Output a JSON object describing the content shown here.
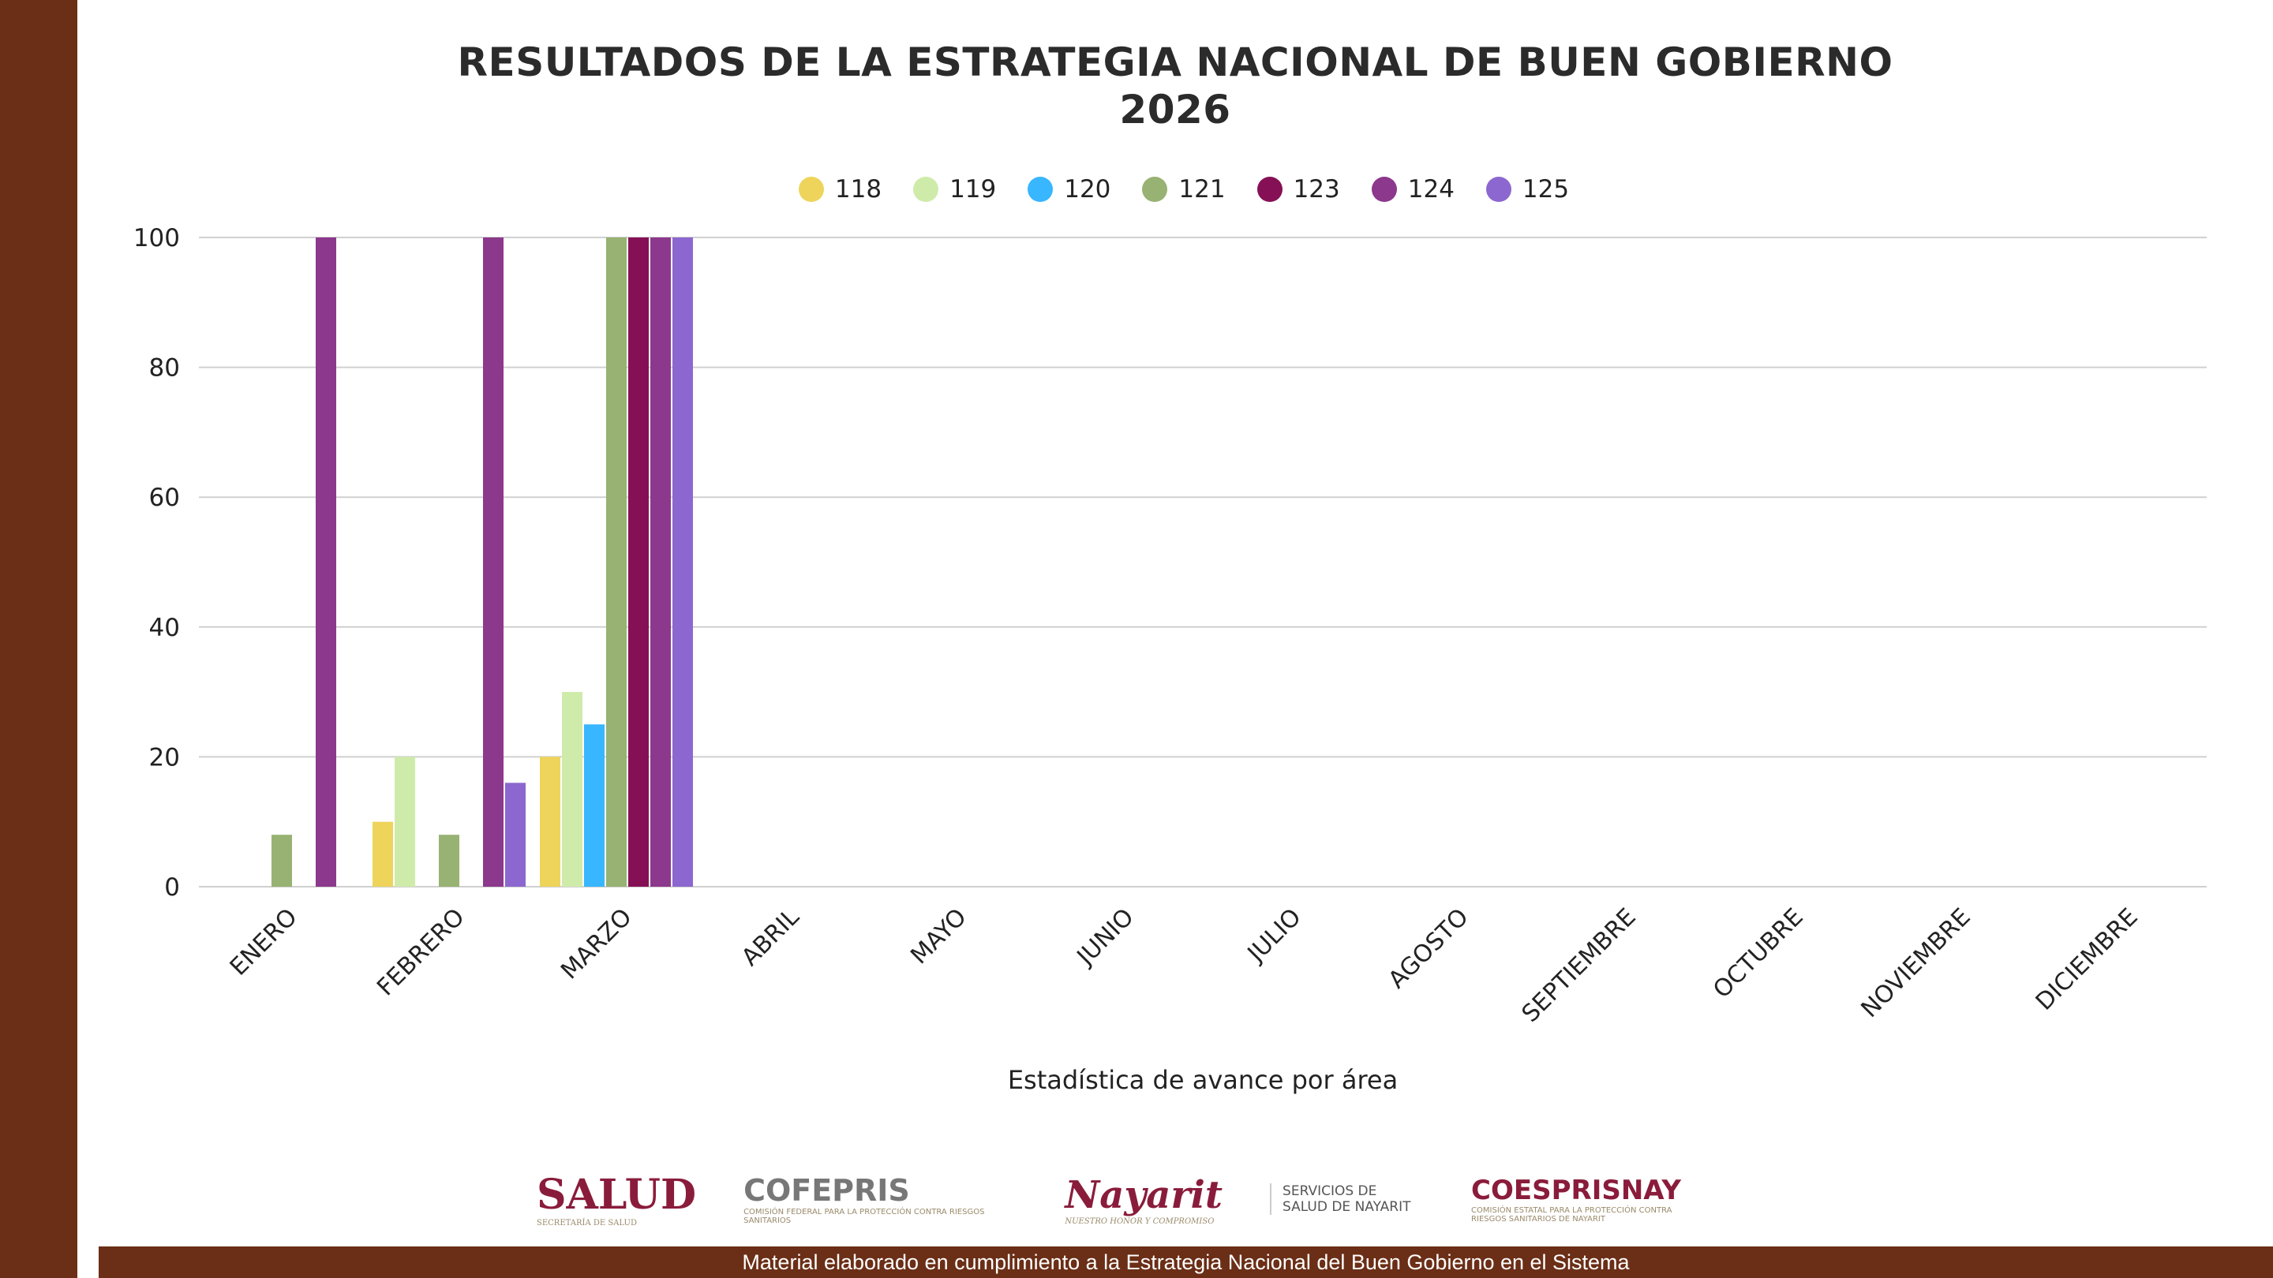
{
  "chart_data": {
    "type": "bar",
    "title": "RESULTADOS DE LA ESTRATEGIA NACIONAL DE BUEN GOBIERNO",
    "subtitle": "2026",
    "xlabel": "Estadística de avance por área",
    "ylabel": "",
    "ylim": [
      0,
      100
    ],
    "yticks": [
      "0",
      "20",
      "40",
      "60",
      "80",
      "100"
    ],
    "grid": true,
    "legend_position": "top",
    "categories": [
      "ENERO",
      "FEBRERO",
      "MARZO",
      "ABRIL",
      "MAYO",
      "JUNIO",
      "JULIO",
      "AGOSTO",
      "SEPTIEMBRE",
      "OCTUBRE",
      "NOVIEMBRE",
      "DICIEMBRE"
    ],
    "series": [
      {
        "name": "118",
        "color": "#EED45A",
        "values": [
          0,
          10,
          20,
          0,
          0,
          0,
          0,
          0,
          0,
          0,
          0,
          0
        ]
      },
      {
        "name": "119",
        "color": "#CFEBAA",
        "values": [
          0,
          20,
          30,
          0,
          0,
          0,
          0,
          0,
          0,
          0,
          0,
          0
        ]
      },
      {
        "name": "120",
        "color": "#38B6FF",
        "values": [
          0,
          0,
          25,
          0,
          0,
          0,
          0,
          0,
          0,
          0,
          0,
          0
        ]
      },
      {
        "name": "121",
        "color": "#97B272",
        "values": [
          8,
          8,
          100,
          0,
          0,
          0,
          0,
          0,
          0,
          0,
          0,
          0
        ]
      },
      {
        "name": "123",
        "color": "#861055",
        "values": [
          0,
          0,
          100,
          0,
          0,
          0,
          0,
          0,
          0,
          0,
          0,
          0
        ]
      },
      {
        "name": "124",
        "color": "#8C388C",
        "values": [
          100,
          100,
          100,
          0,
          0,
          0,
          0,
          0,
          0,
          0,
          0,
          0
        ]
      },
      {
        "name": "125",
        "color": "#8C67CF",
        "values": [
          0,
          16,
          100,
          0,
          0,
          0,
          0,
          0,
          0,
          0,
          0,
          0
        ]
      }
    ]
  },
  "footer": {
    "logos": {
      "salud": "SALUD",
      "salud_sub": "SECRETARÍA DE SALUD",
      "cofepris": "COFEPRIS",
      "cofepris_sub": "COMISIÓN FEDERAL PARA LA PROTECCIÓN CONTRA RIESGOS SANITARIOS",
      "nayarit": "Nayarit",
      "nayarit_sub": "NUESTRO HONOR Y COMPROMISO",
      "servicios": "SERVICIOS DE SALUD DE NAYARIT",
      "coesprisnay": "COESPRISNAY",
      "coesprisnay_sub": "COMISIÓN ESTATAL PARA LA PROTECCIÓN CONTRA RIESGOS SANITARIOS DE NAYARIT"
    },
    "text": "Material elaborado en cumplimiento a la Estrategia Nacional  del Buen Gobierno en el Sistema"
  },
  "colors": {
    "brand_brown": "#6B2E16"
  }
}
